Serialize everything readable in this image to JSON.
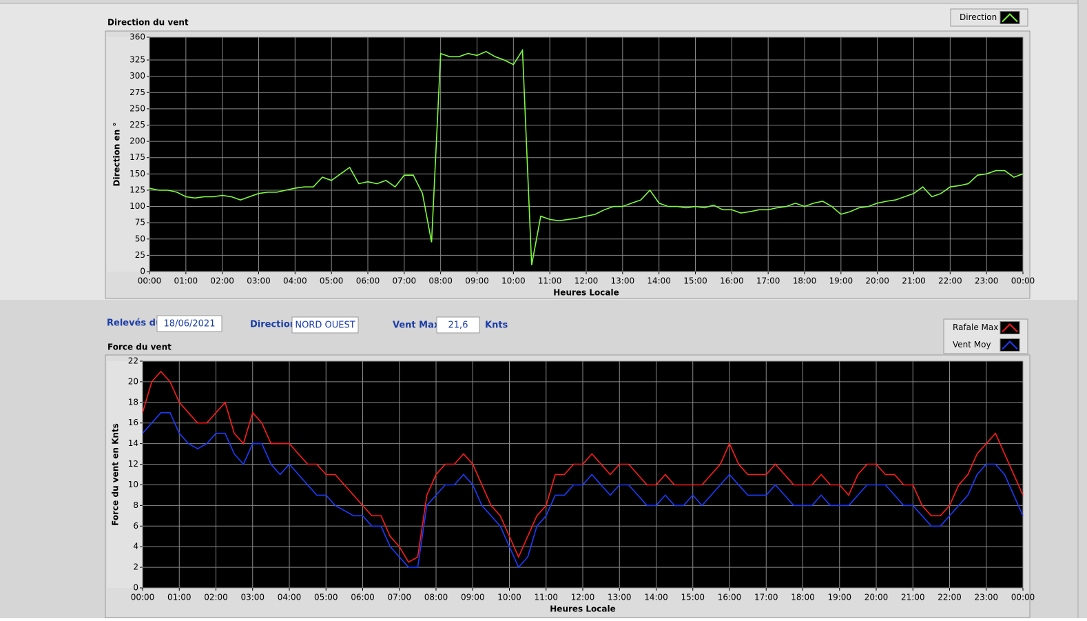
{
  "chart_data": [
    {
      "type": "line",
      "title": "Direction du vent",
      "x_label": "Heures Locale",
      "y_label": "Direction en °",
      "x": [
        0,
        0.25,
        0.5,
        0.75,
        1,
        1.25,
        1.5,
        1.75,
        2,
        2.25,
        2.5,
        2.75,
        3,
        3.25,
        3.5,
        3.75,
        4,
        4.25,
        4.5,
        4.75,
        5,
        5.25,
        5.5,
        5.75,
        6,
        6.25,
        6.5,
        6.75,
        7,
        7.25,
        7.5,
        7.75,
        8,
        8.25,
        8.5,
        8.75,
        9,
        9.25,
        9.5,
        9.75,
        10,
        10.25,
        10.5,
        10.75,
        11,
        11.25,
        11.5,
        11.75,
        12,
        12.25,
        12.5,
        12.75,
        13,
        13.25,
        13.5,
        13.75,
        14,
        14.25,
        14.5,
        14.75,
        15,
        15.25,
        15.5,
        15.75,
        16,
        16.25,
        16.5,
        16.75,
        17,
        17.25,
        17.5,
        17.75,
        18,
        18.25,
        18.5,
        18.75,
        19,
        19.25,
        19.5,
        19.75,
        20,
        20.25,
        20.5,
        20.75,
        21,
        21.25,
        21.5,
        21.75,
        22,
        22.25,
        22.5,
        22.75,
        23,
        23.25,
        23.5,
        23.75,
        24
      ],
      "series": [
        {
          "name": "Direction",
          "color": "#7dfa3c",
          "values": [
            128,
            125,
            125,
            122,
            115,
            113,
            115,
            115,
            117,
            115,
            110,
            115,
            120,
            122,
            122,
            125,
            128,
            130,
            130,
            145,
            140,
            150,
            160,
            135,
            138,
            135,
            140,
            130,
            148,
            148,
            120,
            45,
            335,
            330,
            330,
            335,
            332,
            338,
            330,
            325,
            318,
            340,
            10,
            85,
            80,
            78,
            80,
            82,
            85,
            88,
            95,
            100,
            100,
            105,
            110,
            125,
            105,
            100,
            100,
            98,
            100,
            98,
            102,
            95,
            95,
            90,
            92,
            95,
            95,
            98,
            100,
            105,
            100,
            105,
            108,
            100,
            88,
            92,
            98,
            100,
            105,
            108,
            110,
            115,
            120,
            130,
            115,
            120,
            130,
            132,
            135,
            148,
            150,
            155,
            155,
            145,
            150
          ]
        }
      ],
      "xlim": [
        0,
        24
      ],
      "ylim": [
        0,
        360
      ],
      "yticks": [
        0,
        25,
        50,
        75,
        100,
        125,
        150,
        175,
        200,
        225,
        250,
        275,
        300,
        325,
        360
      ],
      "xticks": [
        {
          "value": 0,
          "label": "00:00"
        },
        {
          "value": 1,
          "label": "01:00"
        },
        {
          "value": 2,
          "label": "02:00"
        },
        {
          "value": 3,
          "label": "03:00"
        },
        {
          "value": 4,
          "label": "04:00"
        },
        {
          "value": 5,
          "label": "05:00"
        },
        {
          "value": 6,
          "label": "06:00"
        },
        {
          "value": 7,
          "label": "07:00"
        },
        {
          "value": 8,
          "label": "08:00"
        },
        {
          "value": 9,
          "label": "09:00"
        },
        {
          "value": 10,
          "label": "10:00"
        },
        {
          "value": 11,
          "label": "11:00"
        },
        {
          "value": 12,
          "label": "12:00"
        },
        {
          "value": 13,
          "label": "13:00"
        },
        {
          "value": 14,
          "label": "14:00"
        },
        {
          "value": 15,
          "label": "15:00"
        },
        {
          "value": 16,
          "label": "16:00"
        },
        {
          "value": 17,
          "label": "17:00"
        },
        {
          "value": 18,
          "label": "18:00"
        },
        {
          "value": 19,
          "label": "19:00"
        },
        {
          "value": 20,
          "label": "20:00"
        },
        {
          "value": 21,
          "label": "21:00"
        },
        {
          "value": 22,
          "label": "22:00"
        },
        {
          "value": 23,
          "label": "23:00"
        },
        {
          "value": 24,
          "label": "00:00"
        }
      ],
      "grid": true
    },
    {
      "type": "line",
      "title": "Force du vent",
      "x_label": "Heures Locale",
      "y_label": "Force du vent en Knts",
      "x": [
        0,
        0.25,
        0.5,
        0.75,
        1,
        1.25,
        1.5,
        1.75,
        2,
        2.25,
        2.5,
        2.75,
        3,
        3.25,
        3.5,
        3.75,
        4,
        4.25,
        4.5,
        4.75,
        5,
        5.25,
        5.5,
        5.75,
        6,
        6.25,
        6.5,
        6.75,
        7,
        7.25,
        7.5,
        7.75,
        8,
        8.25,
        8.5,
        8.75,
        9,
        9.25,
        9.5,
        9.75,
        10,
        10.25,
        10.5,
        10.75,
        11,
        11.25,
        11.5,
        11.75,
        12,
        12.25,
        12.5,
        12.75,
        13,
        13.25,
        13.5,
        13.75,
        14,
        14.25,
        14.5,
        14.75,
        15,
        15.25,
        15.5,
        15.75,
        16,
        16.25,
        16.5,
        16.75,
        17,
        17.25,
        17.5,
        17.75,
        18,
        18.25,
        18.5,
        18.75,
        19,
        19.25,
        19.5,
        19.75,
        20,
        20.25,
        20.5,
        20.75,
        21,
        21.25,
        21.5,
        21.75,
        22,
        22.25,
        22.5,
        22.75,
        23,
        23.25,
        23.5,
        23.75,
        24
      ],
      "series": [
        {
          "name": "Rafale Max",
          "color": "#ff1a1a",
          "values": [
            17,
            20,
            21,
            20,
            18,
            17,
            16,
            16,
            17,
            18,
            15,
            14,
            17,
            16,
            14,
            14,
            14,
            13,
            12,
            12,
            11,
            11,
            10,
            9,
            8,
            7,
            7,
            5,
            4,
            2.5,
            3,
            9,
            11,
            12,
            12,
            13,
            12,
            10,
            8,
            7,
            5,
            3,
            5,
            7,
            8,
            11,
            11,
            12,
            12,
            13,
            12,
            11,
            12,
            12,
            11,
            10,
            10,
            11,
            10,
            10,
            10,
            10,
            11,
            12,
            14,
            12,
            11,
            11,
            11,
            12,
            11,
            10,
            10,
            10,
            11,
            10,
            10,
            9,
            11,
            12,
            12,
            11,
            11,
            10,
            10,
            8,
            7,
            7,
            8,
            10,
            11,
            13,
            14,
            15,
            13,
            11,
            9
          ]
        },
        {
          "name": "Vent Moy",
          "color": "#1a3cff",
          "values": [
            15,
            16,
            17,
            17,
            15,
            14,
            13.5,
            14,
            15,
            15,
            13,
            12,
            14,
            14,
            12,
            11,
            12,
            11,
            10,
            9,
            9,
            8,
            7.5,
            7,
            7,
            6,
            6,
            4,
            3,
            2,
            2,
            8,
            9,
            10,
            10,
            11,
            10,
            8,
            7,
            6,
            4,
            2,
            3,
            6,
            7,
            9,
            9,
            10,
            10,
            11,
            10,
            9,
            10,
            10,
            9,
            8,
            8,
            9,
            8,
            8,
            9,
            8,
            9,
            10,
            11,
            10,
            9,
            9,
            9,
            10,
            9,
            8,
            8,
            8,
            9,
            8,
            8,
            8,
            9,
            10,
            10,
            10,
            9,
            8,
            8,
            7,
            6,
            6,
            7,
            8,
            9,
            11,
            12,
            12,
            11,
            9,
            7
          ]
        }
      ],
      "xlim": [
        0,
        24
      ],
      "ylim": [
        0,
        22
      ],
      "yticks": [
        0,
        2,
        4,
        6,
        8,
        10,
        12,
        14,
        16,
        18,
        20,
        22
      ],
      "xticks": [
        {
          "value": 0,
          "label": "00:00"
        },
        {
          "value": 1,
          "label": "01:00"
        },
        {
          "value": 2,
          "label": "02:00"
        },
        {
          "value": 3,
          "label": "03:00"
        },
        {
          "value": 4,
          "label": "04:00"
        },
        {
          "value": 5,
          "label": "05:00"
        },
        {
          "value": 6,
          "label": "06:00"
        },
        {
          "value": 7,
          "label": "07:00"
        },
        {
          "value": 8,
          "label": "08:00"
        },
        {
          "value": 9,
          "label": "09:00"
        },
        {
          "value": 10,
          "label": "10:00"
        },
        {
          "value": 11,
          "label": "11:00"
        },
        {
          "value": 12,
          "label": "12:00"
        },
        {
          "value": 13,
          "label": "13:00"
        },
        {
          "value": 14,
          "label": "14:00"
        },
        {
          "value": 15,
          "label": "15:00"
        },
        {
          "value": 16,
          "label": "16:00"
        },
        {
          "value": 17,
          "label": "17:00"
        },
        {
          "value": 18,
          "label": "18:00"
        },
        {
          "value": 19,
          "label": "19:00"
        },
        {
          "value": 20,
          "label": "20:00"
        },
        {
          "value": 21,
          "label": "21:00"
        },
        {
          "value": 22,
          "label": "22:00"
        },
        {
          "value": 23,
          "label": "23:00"
        },
        {
          "value": 24,
          "label": "00:00"
        }
      ],
      "grid": true
    }
  ],
  "controls": {
    "date_label": "Relevés du",
    "date": "18/06/2021",
    "direction_label": "Direction",
    "direction": "NORD OUEST",
    "max_label": "Vent Max",
    "max": "21,6",
    "max_unit": "Knts"
  }
}
